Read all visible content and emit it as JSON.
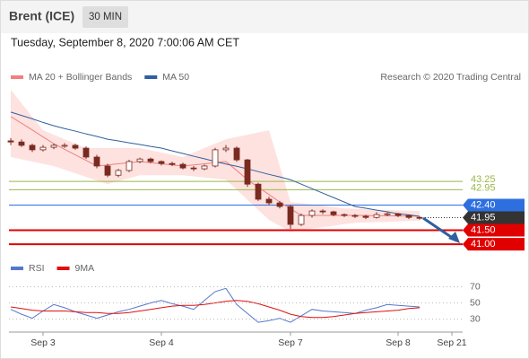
{
  "header": {
    "title": "Brent (ICE)",
    "timeframe": "30 MIN",
    "date": "Tuesday, September 8, 2020 7:00:06 AM CET",
    "credit": "Research © 2020 Trading Central"
  },
  "chart_data": [
    {
      "type": "candlestick",
      "categories": [
        null,
        null,
        null,
        "Sep 3",
        null,
        null,
        null,
        null,
        null,
        null,
        null,
        null,
        null,
        null,
        "Sep 4",
        null,
        null,
        null,
        null,
        null,
        null,
        null,
        null,
        null,
        null,
        null,
        "Sep 7",
        null,
        null,
        null,
        null,
        null,
        null,
        null,
        null,
        null,
        "Sep 8",
        null,
        null,
        null,
        null,
        "Sep 21"
      ],
      "ylim": [
        40.65,
        46.53
      ],
      "candles": {
        "up_color": "#ffffff",
        "down_color": "#7a2b20",
        "open": [
          44.7,
          44.66,
          44.54,
          44.38,
          44.47,
          44.54,
          44.54,
          44.44,
          44.12,
          43.8,
          43.47,
          43.64,
          43.96,
          44.05,
          43.96,
          43.89,
          43.86,
          43.73,
          43.7,
          43.8,
          44.38,
          44.44,
          44.02,
          43.15,
          42.61,
          42.48,
          42.35,
          41.71,
          42.03,
          42.19,
          42.16,
          42.06,
          42.03,
          42.0,
          41.96,
          42.06,
          42.09,
          42.03,
          41.96,
          null,
          null,
          null
        ],
        "high": [
          44.8,
          44.75,
          44.6,
          44.55,
          44.6,
          44.62,
          44.6,
          44.5,
          44.2,
          43.88,
          43.7,
          44.02,
          44.1,
          44.1,
          44.0,
          43.95,
          43.92,
          43.8,
          43.85,
          44.45,
          44.55,
          44.5,
          44.05,
          43.2,
          42.7,
          42.55,
          42.4,
          42.1,
          42.25,
          42.25,
          42.2,
          42.1,
          42.08,
          42.05,
          42.15,
          42.15,
          42.12,
          42.06,
          42.0,
          null,
          null,
          null
        ],
        "low": [
          44.55,
          44.48,
          44.3,
          44.32,
          44.4,
          44.45,
          44.38,
          44.05,
          43.72,
          43.4,
          43.4,
          43.58,
          43.9,
          43.9,
          43.82,
          43.8,
          43.68,
          43.62,
          43.65,
          43.75,
          44.3,
          43.95,
          43.05,
          42.55,
          42.4,
          42.28,
          41.55,
          41.65,
          41.95,
          42.08,
          42.0,
          41.97,
          41.94,
          41.9,
          41.92,
          42.0,
          41.97,
          41.9,
          41.88,
          null,
          null,
          null
        ],
        "close": [
          44.66,
          44.54,
          44.38,
          44.47,
          44.54,
          44.54,
          44.44,
          44.12,
          43.8,
          43.47,
          43.64,
          43.96,
          44.05,
          43.96,
          43.89,
          43.86,
          43.73,
          43.7,
          43.8,
          44.38,
          44.44,
          44.02,
          43.15,
          42.61,
          42.48,
          42.35,
          41.71,
          42.03,
          42.19,
          42.16,
          42.06,
          42.03,
          42.0,
          41.96,
          42.06,
          42.09,
          42.03,
          41.96,
          41.95,
          null,
          null,
          null
        ]
      },
      "overlays": [
        {
          "name": "MA 20 + Bollinger Bands",
          "color": "#f08080",
          "band_color": "#fde2df",
          "values": [
            45.57,
            45.33,
            45.09,
            44.84,
            44.6,
            44.4,
            44.2,
            44.0,
            43.8,
            43.84,
            43.88,
            43.92,
            43.96,
            43.92,
            43.88,
            43.84,
            43.8,
            43.84,
            43.88,
            43.92,
            43.96,
            43.64,
            43.31,
            43.04,
            42.78,
            42.51,
            42.27,
            42.03,
            42.03,
            42.03,
            42.03,
            42.03,
            42.03,
            42.03,
            42.02,
            42.02,
            42.01,
            42.01,
            42.0,
            null,
            null,
            null
          ],
          "upper": [
            46.53,
            46.05,
            45.56,
            45.08,
            44.92,
            44.76,
            44.6,
            44.44,
            44.44,
            44.44,
            44.44,
            44.44,
            44.44,
            44.36,
            44.28,
            44.2,
            44.12,
            44.28,
            44.44,
            44.6,
            44.76,
            44.84,
            44.92,
            45.0,
            45.08,
            43.8,
            42.51,
            42.47,
            42.42,
            42.38,
            42.33,
            42.28,
            42.27,
            42.25,
            42.24,
            42.23,
            42.21,
            42.2,
            42.19,
            null,
            null,
            null
          ],
          "lower": [
            44.12,
            44.04,
            43.96,
            43.88,
            43.8,
            43.67,
            43.54,
            43.41,
            43.28,
            43.15,
            43.26,
            43.36,
            43.47,
            43.47,
            43.47,
            43.47,
            43.47,
            43.43,
            43.39,
            43.35,
            43.31,
            42.95,
            42.59,
            42.23,
            41.87,
            41.66,
            41.45,
            41.5,
            41.56,
            41.61,
            41.66,
            41.72,
            41.77,
            41.78,
            41.79,
            41.8,
            41.82,
            41.83,
            41.84,
            null,
            null,
            null
          ]
        },
        {
          "name": "MA 50",
          "color": "#2f5f9f",
          "values": [
            45.73,
            45.61,
            45.49,
            45.36,
            45.24,
            45.14,
            45.05,
            44.95,
            44.86,
            44.76,
            44.7,
            44.63,
            44.57,
            44.5,
            44.44,
            44.34,
            44.25,
            44.15,
            44.06,
            43.96,
            43.87,
            43.79,
            43.7,
            43.6,
            43.5,
            43.41,
            43.31,
            43.15,
            42.99,
            42.83,
            42.67,
            42.51,
            42.35,
            42.29,
            42.22,
            42.16,
            42.09,
            42.05,
            42.0,
            null,
            null,
            null
          ]
        }
      ],
      "levels": {
        "values": [
          43.25,
          42.95,
          42.4,
          41.95,
          41.5,
          41.0
        ],
        "value_labels": [
          "43.25",
          "42.95",
          "42.40",
          "41.95",
          "41.50",
          "41.00"
        ],
        "colors": [
          "#9ab84a",
          "#9ab84a",
          "#2e6fe0",
          "#333333",
          "#e00000",
          "#e00000"
        ],
        "boxed": [
          false,
          false,
          true,
          true,
          true,
          true
        ],
        "line_styles": [
          "solid",
          "solid",
          "solid",
          "dotted",
          "solid",
          "solid"
        ],
        "line_widths": [
          1,
          1,
          1,
          1,
          2,
          2
        ]
      }
    },
    {
      "type": "line",
      "ylim": [
        15,
        85
      ],
      "yticks": [
        30,
        50,
        70
      ],
      "grid": true,
      "series": [
        {
          "name": "RSI",
          "color": "#5577cc",
          "values": [
            42,
            36,
            31,
            40,
            48,
            44,
            39,
            35,
            31,
            35,
            39,
            42,
            46,
            50,
            53,
            49,
            46,
            42,
            53,
            64,
            68,
            48,
            37,
            26,
            28,
            31,
            26,
            34,
            42,
            40,
            39,
            38,
            37,
            41,
            44,
            48,
            47,
            46,
            45,
            null,
            null,
            null
          ]
        },
        {
          "name": "9MA",
          "color": "#e01010",
          "values": [
            45,
            43,
            41,
            40,
            40,
            40,
            39,
            38,
            38,
            37,
            37,
            38,
            40,
            42,
            44,
            46,
            47,
            47,
            48,
            50,
            52,
            53,
            52,
            49,
            45,
            41,
            36,
            33,
            32,
            32,
            33,
            35,
            37,
            38,
            39,
            40,
            41,
            43,
            44,
            null,
            null,
            null
          ]
        }
      ]
    }
  ]
}
